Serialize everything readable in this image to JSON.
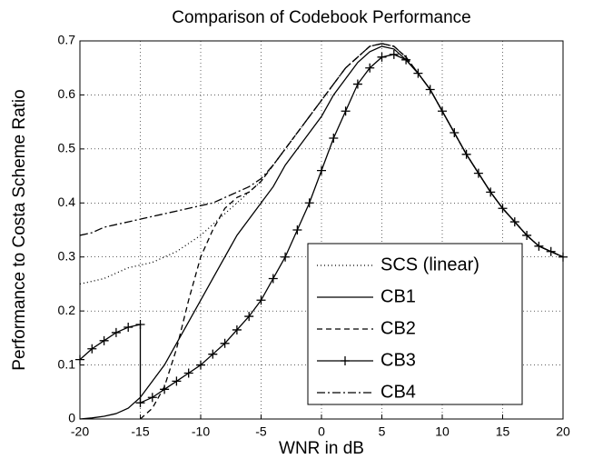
{
  "chart_data": {
    "type": "line",
    "title": "Comparison of Codebook Performance",
    "x_label": "WNR in dB",
    "y_label": "Performance to Costa Scheme Ratio",
    "xlim": [
      -20,
      20
    ],
    "ylim": [
      0,
      0.7
    ],
    "xticks": [
      -20,
      -15,
      -10,
      -5,
      0,
      5,
      10,
      15,
      20
    ],
    "yticks": [
      0,
      0.1,
      0.2,
      0.3,
      0.4,
      0.5,
      0.6,
      0.7
    ],
    "grid": true,
    "legend": "lower right",
    "series": [
      {
        "name": "SCS (linear)",
        "color": "#000000",
        "linestyle": "dotted",
        "x": [
          -20,
          -19,
          -18,
          -17,
          -16,
          -15,
          -14,
          -13,
          -12,
          -11,
          -10,
          -9,
          -8,
          -7,
          -6,
          -5,
          -4,
          -3,
          -2,
          -1,
          0,
          1,
          2,
          3,
          4,
          5,
          6,
          7,
          8,
          9,
          10,
          11,
          12,
          13,
          14,
          15,
          16,
          17,
          18,
          19,
          20
        ],
        "values": [
          0.25,
          0.255,
          0.26,
          0.27,
          0.28,
          0.285,
          0.29,
          0.3,
          0.31,
          0.325,
          0.34,
          0.36,
          0.38,
          0.4,
          0.42,
          0.44,
          0.47,
          0.5,
          0.53,
          0.56,
          0.59,
          0.62,
          0.65,
          0.67,
          0.69,
          0.695,
          0.69,
          0.67,
          0.64,
          0.61,
          0.57,
          0.53,
          0.49,
          0.455,
          0.42,
          0.39,
          0.365,
          0.34,
          0.32,
          0.31,
          0.3
        ]
      },
      {
        "name": "CB1",
        "color": "#000000",
        "linestyle": "solid",
        "x": [
          -20,
          -19,
          -18,
          -17,
          -16,
          -15,
          -14,
          -13,
          -12,
          -11,
          -10,
          -9,
          -8,
          -7,
          -6,
          -5,
          -4,
          -3,
          -2,
          -1,
          0,
          1,
          2,
          3,
          4,
          5,
          6,
          7,
          8,
          9,
          10,
          11,
          12,
          13,
          14,
          15,
          16,
          17,
          18,
          19,
          20
        ],
        "values": [
          0,
          0.002,
          0.005,
          0.01,
          0.02,
          0.04,
          0.07,
          0.1,
          0.14,
          0.18,
          0.22,
          0.26,
          0.3,
          0.34,
          0.37,
          0.4,
          0.43,
          0.47,
          0.5,
          0.53,
          0.56,
          0.6,
          0.63,
          0.66,
          0.68,
          0.69,
          0.685,
          0.665,
          0.64,
          0.61,
          0.57,
          0.53,
          0.49,
          0.455,
          0.42,
          0.39,
          0.365,
          0.34,
          0.32,
          0.31,
          0.3
        ]
      },
      {
        "name": "CB2",
        "color": "#000000",
        "linestyle": "dashed",
        "x": [
          -20,
          -19,
          -18,
          -17,
          -16,
          -15,
          -14,
          -13,
          -12,
          -11,
          -10,
          -9,
          -8,
          -7,
          -6,
          -5,
          -4,
          -3,
          -2,
          -1,
          0,
          1,
          2,
          3,
          4,
          5,
          6,
          7,
          8,
          9,
          10,
          11,
          12,
          13,
          14,
          15,
          16,
          17,
          18,
          19,
          20
        ],
        "values": [
          null,
          null,
          null,
          null,
          null,
          0,
          0.02,
          0.06,
          0.13,
          0.22,
          0.3,
          0.35,
          0.39,
          0.41,
          0.42,
          0.44,
          0.47,
          0.5,
          0.53,
          0.56,
          0.59,
          0.62,
          0.65,
          0.67,
          0.69,
          0.695,
          0.69,
          0.67,
          0.64,
          0.61,
          0.57,
          0.53,
          0.49,
          0.455,
          0.42,
          0.39,
          0.365,
          0.34,
          0.32,
          0.31,
          0.3
        ]
      },
      {
        "name": "CB3",
        "color": "#000000",
        "linestyle": "solid",
        "marker": "+",
        "x": [
          -20,
          -19,
          -18,
          -17,
          -16,
          -15,
          -15,
          -14,
          -13,
          -12,
          -11,
          -10,
          -9,
          -8,
          -7,
          -6,
          -5,
          -4,
          -3,
          -2,
          -1,
          0,
          1,
          2,
          3,
          4,
          5,
          6,
          7,
          8,
          9,
          10,
          11,
          12,
          13,
          14,
          15,
          16,
          17,
          18,
          19,
          20
        ],
        "values": [
          0.11,
          0.13,
          0.145,
          0.16,
          0.17,
          0.175,
          0.03,
          0.04,
          0.055,
          0.07,
          0.085,
          0.1,
          0.12,
          0.14,
          0.165,
          0.19,
          0.22,
          0.26,
          0.3,
          0.35,
          0.4,
          0.46,
          0.52,
          0.57,
          0.62,
          0.65,
          0.67,
          0.675,
          0.665,
          0.64,
          0.61,
          0.57,
          0.53,
          0.49,
          0.455,
          0.42,
          0.39,
          0.365,
          0.34,
          0.32,
          0.31,
          0.3
        ]
      },
      {
        "name": "CB4",
        "color": "#000000",
        "linestyle": "dashdot",
        "x": [
          -20,
          -19,
          -18,
          -17,
          -16,
          -15,
          -14,
          -13,
          -12,
          -11,
          -10,
          -9,
          -8,
          -7,
          -6,
          -5,
          -4,
          -3,
          -2,
          -1,
          0,
          1,
          2,
          3,
          4,
          5,
          6,
          7,
          8,
          9,
          10,
          11,
          12,
          13,
          14,
          15,
          16,
          17,
          18,
          19,
          20
        ],
        "values": [
          0.34,
          0.345,
          0.355,
          0.36,
          0.365,
          0.37,
          0.375,
          0.38,
          0.385,
          0.39,
          0.395,
          0.4,
          0.41,
          0.42,
          0.43,
          0.445,
          0.47,
          0.5,
          0.53,
          0.56,
          0.59,
          0.62,
          0.65,
          0.67,
          0.69,
          0.695,
          0.69,
          0.67,
          0.64,
          0.61,
          0.57,
          0.53,
          0.49,
          0.455,
          0.42,
          0.39,
          0.365,
          0.34,
          0.32,
          0.31,
          0.3
        ]
      }
    ]
  }
}
